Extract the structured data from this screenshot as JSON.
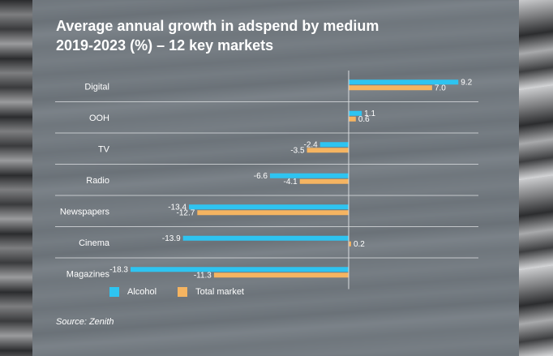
{
  "title_lines": [
    "Average annual growth in adspend by medium",
    "2019-2023 (%) – 12 key markets"
  ],
  "source": "Source: Zenith",
  "colors": {
    "alcohol": "#2ec4f1",
    "total": "#f5b461",
    "divider": "#d9dcdf"
  },
  "chart_data": {
    "type": "bar",
    "orientation": "horizontal",
    "categories": [
      "Digital",
      "OOH",
      "TV",
      "Radio",
      "Newspapers",
      "Cinema",
      "Magazines"
    ],
    "series": [
      {
        "name": "Alcohol",
        "values": [
          9.2,
          1.1,
          -2.4,
          -6.6,
          -13.4,
          -13.9,
          -18.3
        ],
        "labels": [
          "9.2",
          "1.1",
          "-2.4",
          "-6.6",
          "-13.4",
          "-13.9",
          "-18.3"
        ]
      },
      {
        "name": "Total market",
        "values": [
          7.0,
          0.6,
          -3.5,
          -4.1,
          -12.7,
          0.2,
          -11.3
        ],
        "labels": [
          "7.0",
          "0.6",
          "-3.5",
          "-4.1",
          "-12.7",
          "0.2",
          "-11.3"
        ]
      }
    ],
    "xlim": [
      -20,
      10
    ],
    "legend_position": "bottom-left",
    "grid": false
  }
}
